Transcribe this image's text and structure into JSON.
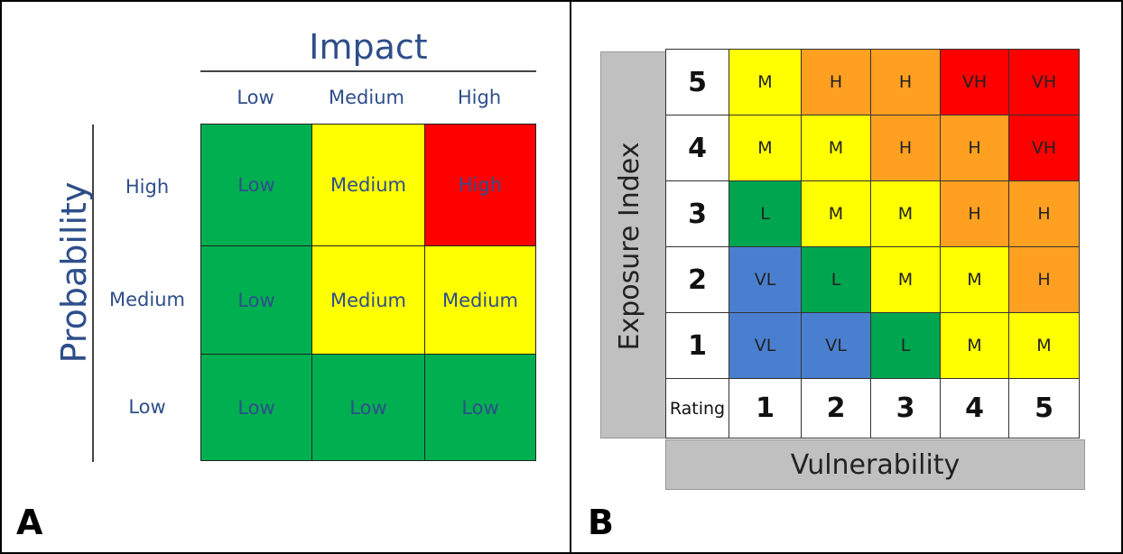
{
  "panel_a": {
    "letter": "A",
    "impact_title": "Impact",
    "probability_title": "Probability",
    "columns": [
      "Low",
      "Medium",
      "High"
    ],
    "rows": [
      {
        "label": "High",
        "cells": [
          {
            "text": "Low",
            "color": "#00b050"
          },
          {
            "text": "Medium",
            "color": "#ffff00"
          },
          {
            "text": "High",
            "color": "#ff0000"
          }
        ]
      },
      {
        "label": "Medium",
        "cells": [
          {
            "text": "Low",
            "color": "#00b050"
          },
          {
            "text": "Medium",
            "color": "#ffff00"
          },
          {
            "text": "Medium",
            "color": "#ffff00"
          }
        ]
      },
      {
        "label": "Low",
        "cells": [
          {
            "text": "Low",
            "color": "#00b050"
          },
          {
            "text": "Low",
            "color": "#00b050"
          },
          {
            "text": "Low",
            "color": "#00b050"
          }
        ]
      }
    ]
  },
  "panel_b": {
    "letter": "B",
    "y_axis_label": "Exposure Index",
    "x_axis_label": "Vulnerability",
    "corner_label": "Rating",
    "columns": [
      "1",
      "2",
      "3",
      "4",
      "5"
    ],
    "rows": [
      {
        "rating": "5",
        "cells": [
          "M",
          "H",
          "H",
          "VH",
          "VH"
        ]
      },
      {
        "rating": "4",
        "cells": [
          "M",
          "M",
          "H",
          "H",
          "VH"
        ]
      },
      {
        "rating": "3",
        "cells": [
          "L",
          "M",
          "M",
          "H",
          "H"
        ]
      },
      {
        "rating": "2",
        "cells": [
          "VL",
          "L",
          "M",
          "M",
          "H"
        ]
      },
      {
        "rating": "1",
        "cells": [
          "VL",
          "VL",
          "L",
          "M",
          "M"
        ]
      }
    ],
    "level_colors": {
      "VL": "#4a7fd0",
      "L": "#00a550",
      "M": "#ffff00",
      "H": "#ffa020",
      "VH": "#ff0000"
    }
  }
}
